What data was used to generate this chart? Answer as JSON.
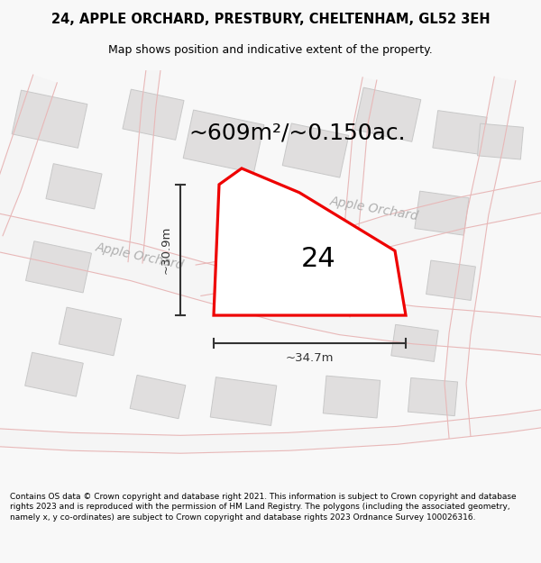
{
  "title_line1": "24, APPLE ORCHARD, PRESTBURY, CHELTENHAM, GL52 3EH",
  "title_line2": "Map shows position and indicative extent of the property.",
  "area_text": "~609m²/~0.150ac.",
  "label_number": "24",
  "dim_height": "~30.9m",
  "dim_width": "~34.7m",
  "footer_text": "Contains OS data © Crown copyright and database right 2021. This information is subject to Crown copyright and database rights 2023 and is reproduced with the permission of HM Land Registry. The polygons (including the associated geometry, namely x, y co-ordinates) are subject to Crown copyright and database rights 2023 Ordnance Survey 100026316.",
  "bg_color": "#f8f8f8",
  "map_bg": "#f2f0f0",
  "road_fill": "#f5f5f5",
  "road_border": "#e8b8b8",
  "building_color": "#e0dede",
  "building_border": "#c8c8c8",
  "plot_color": "#ffffff",
  "plot_border": "#ee0000",
  "dim_color": "#333333",
  "street_label_color": "#b0b0b0",
  "title_color": "#000000",
  "footer_color": "#000000",
  "title_fontsize": 10.5,
  "subtitle_fontsize": 9.0,
  "area_fontsize": 18,
  "label_fontsize": 22,
  "dim_fontsize": 9.5,
  "street_fontsize": 10,
  "footer_fontsize": 6.5
}
